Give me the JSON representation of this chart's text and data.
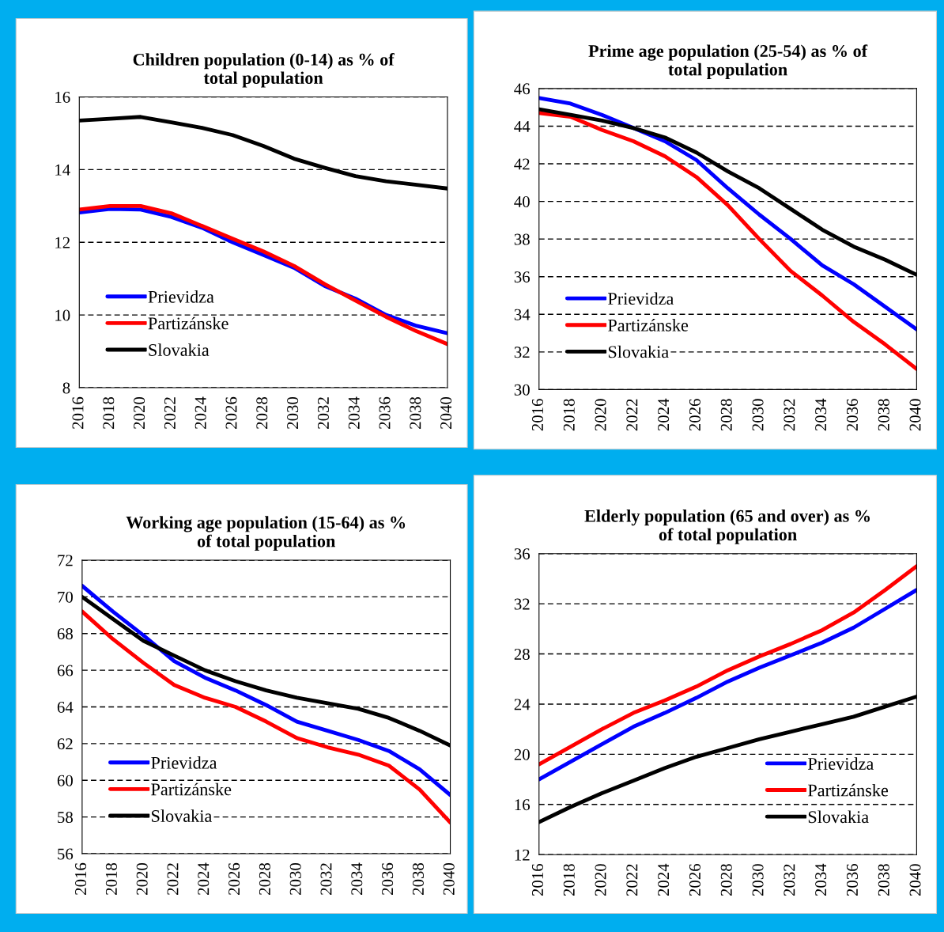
{
  "chart_data": [
    {
      "type": "line",
      "title": "Children population (0-14) as % of\ntotal population",
      "x": [
        2016,
        2018,
        2020,
        2022,
        2024,
        2026,
        2028,
        2030,
        2032,
        2034,
        2036,
        2038,
        2040
      ],
      "xlim": [
        2016,
        2040
      ],
      "xticks": [
        2016,
        2018,
        2020,
        2022,
        2024,
        2026,
        2028,
        2030,
        2032,
        2034,
        2036,
        2038,
        2040
      ],
      "ylim": [
        8,
        16
      ],
      "yticks": [
        8,
        10,
        12,
        14,
        16
      ],
      "grid": "y",
      "legend": "bottom left",
      "series": [
        {
          "name": "Prievidza",
          "color": "#0000ff",
          "values": [
            12.82,
            12.92,
            12.9,
            12.7,
            12.4,
            12.0,
            11.65,
            11.3,
            10.8,
            10.45,
            10.0,
            9.7,
            9.5
          ]
        },
        {
          "name": "Partizánske",
          "color": "#ff0000",
          "values": [
            12.9,
            13.0,
            13.0,
            12.8,
            12.45,
            12.1,
            11.75,
            11.35,
            10.85,
            10.4,
            9.95,
            9.55,
            9.2
          ]
        },
        {
          "name": "Slovakia",
          "color": "#000000",
          "values": [
            15.35,
            15.4,
            15.45,
            15.3,
            15.15,
            14.95,
            14.65,
            14.3,
            14.05,
            13.82,
            13.68,
            13.58,
            13.48
          ]
        }
      ]
    },
    {
      "type": "line",
      "title": "Prime age population (25-54) as % of\ntotal population",
      "x": [
        2016,
        2018,
        2020,
        2022,
        2024,
        2026,
        2028,
        2030,
        2032,
        2034,
        2036,
        2038,
        2040
      ],
      "xlim": [
        2016,
        2040
      ],
      "xticks": [
        2016,
        2018,
        2020,
        2022,
        2024,
        2026,
        2028,
        2030,
        2032,
        2034,
        2036,
        2038,
        2040
      ],
      "ylim": [
        30,
        46
      ],
      "yticks": [
        30,
        32,
        34,
        36,
        38,
        40,
        42,
        44,
        46
      ],
      "grid": "y",
      "legend": "bottom left",
      "series": [
        {
          "name": "Prievidza",
          "color": "#0000ff",
          "values": [
            45.5,
            45.2,
            44.6,
            43.9,
            43.2,
            42.2,
            40.7,
            39.3,
            38.0,
            36.6,
            35.6,
            34.4,
            33.2
          ]
        },
        {
          "name": "Partizánske",
          "color": "#ff0000",
          "values": [
            44.7,
            44.5,
            43.8,
            43.2,
            42.4,
            41.3,
            39.8,
            38.0,
            36.3,
            35.0,
            33.6,
            32.4,
            31.1
          ]
        },
        {
          "name": "Slovakia",
          "color": "#000000",
          "values": [
            44.9,
            44.6,
            44.3,
            43.9,
            43.4,
            42.6,
            41.6,
            40.7,
            39.6,
            38.5,
            37.6,
            36.9,
            36.1
          ]
        }
      ]
    },
    {
      "type": "line",
      "title": "Working age population (15-64) as %\nof total population",
      "x": [
        2016,
        2018,
        2020,
        2022,
        2024,
        2026,
        2028,
        2030,
        2032,
        2034,
        2036,
        2038,
        2040
      ],
      "xlim": [
        2016,
        2040
      ],
      "xticks": [
        2016,
        2018,
        2020,
        2022,
        2024,
        2026,
        2028,
        2030,
        2032,
        2034,
        2036,
        2038,
        2040
      ],
      "ylim": [
        56,
        72
      ],
      "yticks": [
        56,
        58,
        60,
        62,
        64,
        66,
        68,
        70,
        72
      ],
      "grid": "y",
      "legend": "bottom left",
      "series": [
        {
          "name": "Prievidza",
          "color": "#0000ff",
          "values": [
            70.6,
            69.2,
            67.9,
            66.5,
            65.6,
            64.9,
            64.1,
            63.2,
            62.7,
            62.2,
            61.6,
            60.6,
            59.2
          ]
        },
        {
          "name": "Partizánske",
          "color": "#ff0000",
          "values": [
            69.2,
            67.7,
            66.4,
            65.2,
            64.5,
            64.0,
            63.2,
            62.3,
            61.8,
            61.4,
            60.8,
            59.5,
            57.7
          ]
        },
        {
          "name": "Slovakia",
          "color": "#000000",
          "values": [
            70.0,
            68.8,
            67.6,
            66.8,
            66.0,
            65.4,
            64.9,
            64.5,
            64.2,
            63.9,
            63.4,
            62.7,
            61.9
          ]
        }
      ]
    },
    {
      "type": "line",
      "title": "Elderly population (65 and over) as %\nof total population",
      "x": [
        2016,
        2018,
        2020,
        2022,
        2024,
        2026,
        2028,
        2030,
        2032,
        2034,
        2036,
        2038,
        2040
      ],
      "xlim": [
        2016,
        2040
      ],
      "xticks": [
        2016,
        2018,
        2020,
        2022,
        2024,
        2026,
        2028,
        2030,
        2032,
        2034,
        2036,
        2038,
        2040
      ],
      "ylim": [
        12,
        36
      ],
      "yticks": [
        12,
        16,
        20,
        24,
        28,
        32,
        36
      ],
      "grid": "y",
      "legend": "bottom right",
      "series": [
        {
          "name": "Prievidza",
          "color": "#0000ff",
          "values": [
            18.0,
            19.4,
            20.8,
            22.2,
            23.3,
            24.5,
            25.8,
            26.9,
            27.9,
            28.9,
            30.1,
            31.6,
            33.1
          ]
        },
        {
          "name": "Partizánske",
          "color": "#ff0000",
          "values": [
            19.2,
            20.6,
            22.0,
            23.3,
            24.3,
            25.4,
            26.7,
            27.8,
            28.8,
            29.9,
            31.3,
            33.1,
            35.0
          ]
        },
        {
          "name": "Slovakia",
          "color": "#000000",
          "values": [
            14.6,
            15.8,
            16.9,
            17.9,
            18.9,
            19.8,
            20.5,
            21.2,
            21.8,
            22.4,
            23.0,
            23.8,
            24.6
          ]
        }
      ]
    }
  ]
}
